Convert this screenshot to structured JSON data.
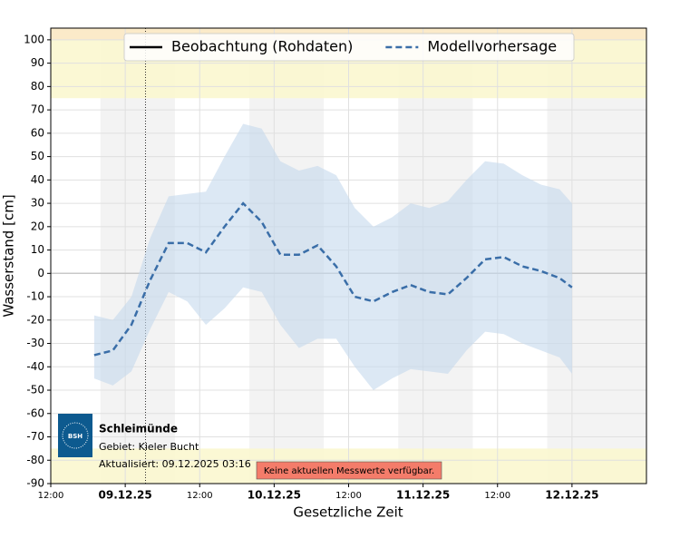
{
  "chart_data": {
    "type": "line",
    "xlabel": "Gesetzliche Zeit",
    "ylabel": "Wasserstand [cm]",
    "x": [
      "08.12.25 19:00",
      "08.12.25 22:00",
      "09.12.25 01:00",
      "09.12.25 04:00",
      "09.12.25 07:00",
      "09.12.25 10:00",
      "09.12.25 13:00",
      "09.12.25 16:00",
      "09.12.25 19:00",
      "09.12.25 22:00",
      "10.12.25 01:00",
      "10.12.25 04:00",
      "10.12.25 07:00",
      "10.12.25 10:00",
      "10.12.25 13:00",
      "10.12.25 16:00",
      "10.12.25 19:00",
      "10.12.25 22:00",
      "11.12.25 01:00",
      "11.12.25 04:00",
      "11.12.25 07:00",
      "11.12.25 10:00",
      "11.12.25 13:00",
      "11.12.25 16:00",
      "11.12.25 19:00",
      "11.12.25 22:00",
      "12.12.25 00:00"
    ],
    "series": [
      {
        "name": "Beobachtung (Rohdaten)",
        "color": "#000000",
        "dash": false,
        "values": [
          null,
          null,
          null,
          null,
          null,
          null,
          null,
          null,
          null,
          null,
          null,
          null,
          null,
          null,
          null,
          null,
          null,
          null,
          null,
          null,
          null,
          null,
          null,
          null,
          null,
          null,
          null
        ]
      },
      {
        "name": "Modellvorhersage",
        "color": "#3a6ea8",
        "dash": true,
        "values": [
          -35,
          -33,
          -22,
          -3,
          13,
          13,
          9,
          20,
          30,
          22,
          8,
          8,
          12,
          3,
          -10,
          -12,
          -8,
          -5,
          -8,
          -9,
          -2,
          6,
          7,
          3,
          1,
          -2,
          -6
        ],
        "upper": [
          -18,
          -20,
          -10,
          15,
          33,
          34,
          35,
          50,
          64,
          62,
          48,
          44,
          46,
          42,
          28,
          20,
          24,
          30,
          28,
          31,
          40,
          48,
          47,
          42,
          38,
          36,
          30
        ],
        "lower": [
          -45,
          -48,
          -42,
          -24,
          -8,
          -12,
          -22,
          -15,
          -6,
          -8,
          -22,
          -32,
          -28,
          -28,
          -40,
          -50,
          -45,
          -41,
          -42,
          -43,
          -33,
          -25,
          -26,
          -30,
          -33,
          -36,
          -43
        ]
      }
    ],
    "xlim": [
      "08.12.25 12:00",
      "12.12.25 12:00"
    ],
    "xticks": [
      {
        "value": "08.12.25 12:00",
        "label": "12:00"
      },
      {
        "value": "09.12.25 00:00",
        "label": "09.12.25"
      },
      {
        "value": "09.12.25 12:00",
        "label": "12:00"
      },
      {
        "value": "10.12.25 00:00",
        "label": "10.12.25"
      },
      {
        "value": "10.12.25 12:00",
        "label": "12:00"
      },
      {
        "value": "11.12.25 00:00",
        "label": "11.12.25"
      },
      {
        "value": "11.12.25 12:00",
        "label": "12:00"
      },
      {
        "value": "12.12.25 00:00",
        "label": "12.12.25"
      }
    ],
    "ylim": [
      -90,
      105
    ],
    "yticks": [
      -90,
      -80,
      -70,
      -60,
      -50,
      -40,
      -30,
      -20,
      -10,
      0,
      10,
      20,
      30,
      40,
      50,
      60,
      70,
      80,
      90,
      100
    ],
    "grid": true,
    "legend": "upper center",
    "now": "09.12.25 03:16",
    "warning_zones": [
      {
        "from": 75,
        "to": 105,
        "color": "#fbf7cf"
      },
      {
        "from": 100,
        "to": 105,
        "color": "#fbe8c8"
      },
      {
        "from": -90,
        "to": -75,
        "color": "#fbf7cf"
      }
    ],
    "night_shading": [
      [
        "08.12.25 20:00",
        "09.12.25 08:00"
      ],
      [
        "09.12.25 20:00",
        "10.12.25 08:00"
      ],
      [
        "10.12.25 20:00",
        "11.12.25 08:00"
      ],
      [
        "11.12.25 20:00",
        "12.12.25 12:00"
      ]
    ],
    "station": "Schleimünde",
    "area": "Gebiet: Kieler Bucht",
    "updated": "Aktualisiert: 09.12.2025 03:16",
    "notice": "Keine aktuellen Messwerte verfügbar.",
    "logo": "BSH"
  }
}
